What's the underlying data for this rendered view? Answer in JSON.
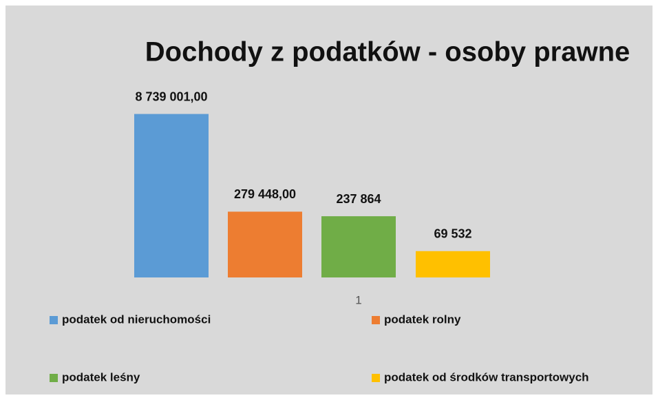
{
  "chart_data": {
    "type": "bar",
    "title": "Dochody z podatków - osoby prawne",
    "categories": [
      "1"
    ],
    "log_scale": true,
    "ylim": [
      27500,
      10000000
    ],
    "series": [
      {
        "name": "podatek od nieruchomości",
        "color": "#5b9bd5",
        "values": [
          8739001
        ],
        "value_labels": [
          "8 739 001,00"
        ]
      },
      {
        "name": "podatek rolny",
        "color": "#ed7d31",
        "values": [
          279448
        ],
        "value_labels": [
          "279 448,00"
        ]
      },
      {
        "name": "podatek leśny",
        "color": "#70ad47",
        "values": [
          237864
        ],
        "value_labels": [
          "237 864"
        ]
      },
      {
        "name": "podatek od środków transportowych",
        "color": "#ffc000",
        "values": [
          69532
        ],
        "value_labels": [
          "69 532"
        ]
      }
    ]
  }
}
